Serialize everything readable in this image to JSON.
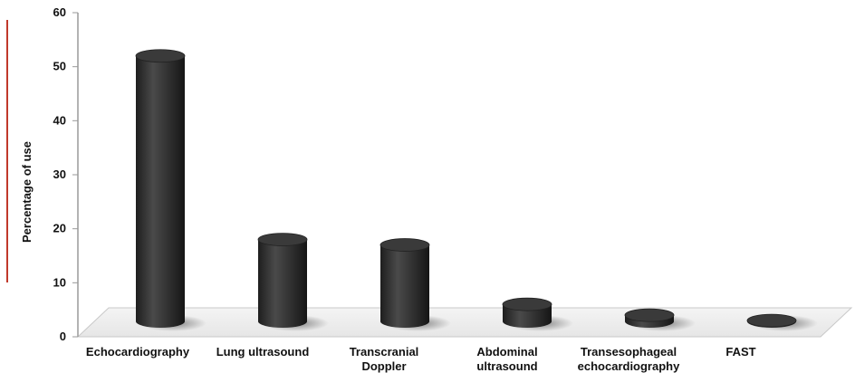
{
  "chart_data": {
    "type": "bar",
    "title": "",
    "xlabel": "",
    "ylabel": "Percentage of use",
    "ylim": [
      0,
      60
    ],
    "yticks": [
      0,
      10,
      20,
      30,
      40,
      50,
      60
    ],
    "categories": [
      [
        "Echocardiography"
      ],
      [
        "Lung ultrasound"
      ],
      [
        "Transcranial",
        "Doppler"
      ],
      [
        "Abdominal",
        "ultrasound"
      ],
      [
        "Transesophageal",
        "echocardiography"
      ],
      [
        "FAST"
      ]
    ],
    "values": [
      52,
      18,
      17,
      6,
      4,
      3
    ],
    "bar_color": "#2b2b2b",
    "accent_line_color": "#c0392b",
    "grid": false,
    "legend": "none"
  }
}
